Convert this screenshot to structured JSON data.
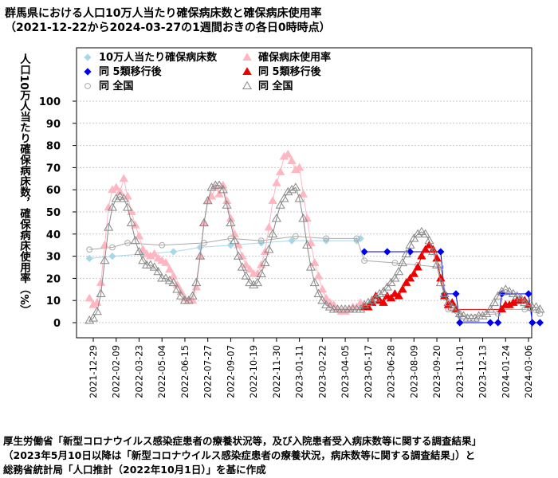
{
  "title_line1": "群馬県における人口10万人当たり確保病床数と確保病床使用率",
  "title_line2": "（2021-12-22から2024-03-27の1週間おきの各日0時時点）",
  "footer": [
    "厚生労働省「新型コロナウイルス感染症患者の療養状況等，及び入院患者受入病床数等に関する調査結果」",
    "（2023年5月10日以降は「新型コロナウイルス感染症患者の療養状況，病床数等に関する調査結果」）と",
    "総務省統計局「人口推計（2022年10月1日）」を基に作成"
  ],
  "chart_data": {
    "type": "scatter",
    "ylabel": "人口10万人当たり確保病床数，確保病床使用率（%）",
    "ylim": [
      0,
      100
    ],
    "yticks": [
      0,
      10,
      20,
      30,
      40,
      50,
      60,
      70,
      80,
      90,
      100
    ],
    "grid": true,
    "legend_position": "top-left",
    "x_tick_labels": [
      "2021-12-29",
      "2022-02-09",
      "2022-03-23",
      "2022-05-04",
      "2022-06-15",
      "2022-07-27",
      "2022-09-07",
      "2022-10-19",
      "2022-11-30",
      "2023-01-11",
      "2023-02-22",
      "2023-04-05",
      "2023-05-17",
      "2023-06-28",
      "2023-08-09",
      "2023-09-20",
      "2023-11-01",
      "2023-12-13",
      "2024-01-24",
      "2024-03-06"
    ],
    "series": [
      {
        "name": "10万人当たり確保病床数",
        "color": "#a8d8e8",
        "marker": "diamond",
        "points": [
          [
            "2021-12-22",
            29
          ],
          [
            "2022-02-02",
            30
          ],
          [
            "2022-03-30",
            31
          ],
          [
            "2022-05-25",
            32
          ],
          [
            "2022-07-13",
            34
          ],
          [
            "2022-09-07",
            35
          ],
          [
            "2022-11-02",
            36
          ],
          [
            "2022-12-28",
            37
          ],
          [
            "2023-03-01",
            37
          ],
          [
            "2023-04-26",
            37
          ],
          [
            "2023-05-03",
            38
          ]
        ]
      },
      {
        "name": "同 5類移行後",
        "color": "#0000ee",
        "marker": "diamond-filled",
        "points": [
          [
            "2023-05-10",
            32
          ],
          [
            "2023-06-21",
            32
          ],
          [
            "2023-08-02",
            32
          ],
          [
            "2023-09-27",
            32
          ],
          [
            "2023-10-04",
            13
          ],
          [
            "2023-10-25",
            13
          ],
          [
            "2023-11-01",
            0
          ],
          [
            "2023-12-27",
            0
          ],
          [
            "2024-01-10",
            0
          ],
          [
            "2024-01-17",
            13
          ],
          [
            "2024-03-06",
            13
          ],
          [
            "2024-03-13",
            0
          ],
          [
            "2024-03-27",
            0
          ]
        ]
      },
      {
        "name": "同 全国",
        "color": "#aaaaaa",
        "marker": "circle-open",
        "points": [
          [
            "2021-12-22",
            33
          ],
          [
            "2022-02-02",
            34
          ],
          [
            "2022-03-02",
            36
          ],
          [
            "2022-05-04",
            35
          ],
          [
            "2022-07-20",
            36
          ],
          [
            "2022-09-07",
            38
          ],
          [
            "2022-11-02",
            37
          ],
          [
            "2023-01-04",
            39
          ],
          [
            "2023-03-01",
            38
          ],
          [
            "2023-04-26",
            38
          ],
          [
            "2023-05-10",
            28
          ],
          [
            "2023-07-05",
            27
          ],
          [
            "2023-08-16",
            26
          ],
          [
            "2023-09-27",
            25
          ],
          [
            "2023-10-11",
            6
          ],
          [
            "2023-11-01",
            3
          ],
          [
            "2024-01-10",
            4
          ],
          [
            "2024-01-17",
            6
          ],
          [
            "2024-02-28",
            6
          ],
          [
            "2024-03-27",
            4
          ]
        ]
      },
      {
        "name": "確保病床使用率",
        "color": "#ffb6c1",
        "marker": "triangle",
        "points": [
          [
            "2021-12-22",
            11
          ],
          [
            "2021-12-29",
            8
          ],
          [
            "2022-01-05",
            9
          ],
          [
            "2022-01-12",
            18
          ],
          [
            "2022-01-19",
            35
          ],
          [
            "2022-01-26",
            52
          ],
          [
            "2022-02-02",
            60
          ],
          [
            "2022-02-09",
            61
          ],
          [
            "2022-02-16",
            59
          ],
          [
            "2022-02-23",
            65
          ],
          [
            "2022-03-02",
            57
          ],
          [
            "2022-03-09",
            50
          ],
          [
            "2022-03-16",
            44
          ],
          [
            "2022-03-23",
            39
          ],
          [
            "2022-03-30",
            33
          ],
          [
            "2022-04-06",
            31
          ],
          [
            "2022-04-13",
            30
          ],
          [
            "2022-04-20",
            31
          ],
          [
            "2022-04-27",
            29
          ],
          [
            "2022-05-04",
            28
          ],
          [
            "2022-05-11",
            27
          ],
          [
            "2022-05-18",
            24
          ],
          [
            "2022-05-25",
            21
          ],
          [
            "2022-06-01",
            17
          ],
          [
            "2022-06-08",
            14
          ],
          [
            "2022-06-15",
            11
          ],
          [
            "2022-06-22",
            10
          ],
          [
            "2022-06-29",
            10
          ],
          [
            "2022-07-06",
            16
          ],
          [
            "2022-07-13",
            30
          ],
          [
            "2022-07-20",
            45
          ],
          [
            "2022-07-27",
            55
          ],
          [
            "2022-08-03",
            57
          ],
          [
            "2022-08-10",
            61
          ],
          [
            "2022-08-17",
            58
          ],
          [
            "2022-08-24",
            62
          ],
          [
            "2022-08-31",
            55
          ],
          [
            "2022-09-07",
            47
          ],
          [
            "2022-09-14",
            40
          ],
          [
            "2022-09-21",
            35
          ],
          [
            "2022-09-28",
            30
          ],
          [
            "2022-10-05",
            26
          ],
          [
            "2022-10-12",
            24
          ],
          [
            "2022-10-19",
            22
          ],
          [
            "2022-10-26",
            22
          ],
          [
            "2022-11-02",
            26
          ],
          [
            "2022-11-09",
            32
          ],
          [
            "2022-11-16",
            43
          ],
          [
            "2022-11-23",
            55
          ],
          [
            "2022-11-30",
            63
          ],
          [
            "2022-12-07",
            68
          ],
          [
            "2022-12-14",
            75
          ],
          [
            "2022-12-21",
            76
          ],
          [
            "2022-12-28",
            73
          ],
          [
            "2023-01-04",
            69
          ],
          [
            "2023-01-11",
            70
          ],
          [
            "2023-01-18",
            58
          ],
          [
            "2023-01-25",
            47
          ],
          [
            "2023-02-01",
            36
          ],
          [
            "2023-02-08",
            27
          ],
          [
            "2023-02-15",
            21
          ],
          [
            "2023-02-22",
            15
          ],
          [
            "2023-03-01",
            11
          ],
          [
            "2023-03-08",
            9
          ],
          [
            "2023-03-15",
            8
          ],
          [
            "2023-03-22",
            6
          ],
          [
            "2023-03-29",
            5
          ],
          [
            "2023-04-05",
            5
          ],
          [
            "2023-04-12",
            6
          ],
          [
            "2023-04-19",
            7
          ],
          [
            "2023-04-26",
            7
          ],
          [
            "2023-05-03",
            9
          ]
        ]
      },
      {
        "name": "同 5類移行後",
        "color": "#ee0000",
        "marker": "triangle-filled",
        "points": [
          [
            "2023-05-10",
            7
          ],
          [
            "2023-05-17",
            7
          ],
          [
            "2023-05-24",
            9
          ],
          [
            "2023-05-31",
            12
          ],
          [
            "2023-06-07",
            10
          ],
          [
            "2023-06-14",
            9
          ],
          [
            "2023-06-21",
            12
          ],
          [
            "2023-06-28",
            11
          ],
          [
            "2023-07-05",
            13
          ],
          [
            "2023-07-12",
            12
          ],
          [
            "2023-07-19",
            15
          ],
          [
            "2023-07-26",
            18
          ],
          [
            "2023-08-02",
            20
          ],
          [
            "2023-08-09",
            22
          ],
          [
            "2023-08-16",
            25
          ],
          [
            "2023-08-23",
            30
          ],
          [
            "2023-08-30",
            33
          ],
          [
            "2023-09-06",
            35
          ],
          [
            "2023-09-13",
            33
          ],
          [
            "2023-09-20",
            29
          ],
          [
            "2023-09-27",
            20
          ],
          [
            "2023-10-04",
            12
          ],
          [
            "2023-10-11",
            8
          ],
          [
            "2023-10-18",
            9
          ],
          [
            "2023-10-25",
            6
          ],
          [
            "2024-01-17",
            6
          ],
          [
            "2024-01-24",
            8
          ],
          [
            "2024-01-31",
            8
          ],
          [
            "2024-02-07",
            9
          ],
          [
            "2024-02-14",
            10
          ],
          [
            "2024-02-21",
            10
          ],
          [
            "2024-02-28",
            10
          ],
          [
            "2024-03-06",
            8
          ]
        ]
      },
      {
        "name": "同 全国",
        "color": "#888888",
        "marker": "triangle-open",
        "points": [
          [
            "2021-12-22",
            1
          ],
          [
            "2021-12-29",
            2
          ],
          [
            "2022-01-05",
            5
          ],
          [
            "2022-01-12",
            13
          ],
          [
            "2022-01-19",
            28
          ],
          [
            "2022-01-26",
            43
          ],
          [
            "2022-02-02",
            52
          ],
          [
            "2022-02-09",
            56
          ],
          [
            "2022-02-16",
            57
          ],
          [
            "2022-02-23",
            56
          ],
          [
            "2022-03-02",
            52
          ],
          [
            "2022-03-09",
            45
          ],
          [
            "2022-03-16",
            37
          ],
          [
            "2022-03-23",
            32
          ],
          [
            "2022-03-30",
            28
          ],
          [
            "2022-04-06",
            26
          ],
          [
            "2022-04-13",
            26
          ],
          [
            "2022-04-20",
            25
          ],
          [
            "2022-04-27",
            23
          ],
          [
            "2022-05-04",
            20
          ],
          [
            "2022-05-11",
            20
          ],
          [
            "2022-05-18",
            19
          ],
          [
            "2022-05-25",
            18
          ],
          [
            "2022-06-01",
            15
          ],
          [
            "2022-06-08",
            12
          ],
          [
            "2022-06-15",
            10
          ],
          [
            "2022-06-22",
            10
          ],
          [
            "2022-06-29",
            12
          ],
          [
            "2022-07-06",
            18
          ],
          [
            "2022-07-13",
            30
          ],
          [
            "2022-07-20",
            45
          ],
          [
            "2022-07-27",
            55
          ],
          [
            "2022-08-03",
            61
          ],
          [
            "2022-08-10",
            62
          ],
          [
            "2022-08-17",
            62
          ],
          [
            "2022-08-24",
            60
          ],
          [
            "2022-08-31",
            53
          ],
          [
            "2022-09-07",
            45
          ],
          [
            "2022-09-14",
            37
          ],
          [
            "2022-09-21",
            30
          ],
          [
            "2022-09-28",
            25
          ],
          [
            "2022-10-05",
            21
          ],
          [
            "2022-10-12",
            18
          ],
          [
            "2022-10-19",
            17
          ],
          [
            "2022-10-26",
            18
          ],
          [
            "2022-11-02",
            22
          ],
          [
            "2022-11-09",
            27
          ],
          [
            "2022-11-16",
            33
          ],
          [
            "2022-11-23",
            40
          ],
          [
            "2022-11-30",
            47
          ],
          [
            "2022-12-07",
            53
          ],
          [
            "2022-12-14",
            56
          ],
          [
            "2022-12-21",
            59
          ],
          [
            "2022-12-28",
            60
          ],
          [
            "2023-01-04",
            61
          ],
          [
            "2023-01-11",
            56
          ],
          [
            "2023-01-18",
            47
          ],
          [
            "2023-01-25",
            35
          ],
          [
            "2023-02-01",
            25
          ],
          [
            "2023-02-08",
            18
          ],
          [
            "2023-02-15",
            13
          ],
          [
            "2023-02-22",
            10
          ],
          [
            "2023-03-01",
            8
          ],
          [
            "2023-03-08",
            7
          ],
          [
            "2023-03-15",
            6
          ],
          [
            "2023-03-22",
            6
          ],
          [
            "2023-03-29",
            6
          ],
          [
            "2023-04-05",
            6
          ],
          [
            "2023-04-12",
            6
          ],
          [
            "2023-04-19",
            6
          ],
          [
            "2023-04-26",
            6
          ],
          [
            "2023-05-03",
            6
          ],
          [
            "2023-05-10",
            8
          ],
          [
            "2023-05-17",
            9
          ],
          [
            "2023-05-24",
            10
          ],
          [
            "2023-05-31",
            11
          ],
          [
            "2023-06-07",
            13
          ],
          [
            "2023-06-14",
            14
          ],
          [
            "2023-06-21",
            16
          ],
          [
            "2023-06-28",
            18
          ],
          [
            "2023-07-05",
            20
          ],
          [
            "2023-07-12",
            23
          ],
          [
            "2023-07-19",
            27
          ],
          [
            "2023-07-26",
            31
          ],
          [
            "2023-08-02",
            35
          ],
          [
            "2023-08-09",
            38
          ],
          [
            "2023-08-16",
            40
          ],
          [
            "2023-08-23",
            41
          ],
          [
            "2023-08-30",
            40
          ],
          [
            "2023-09-06",
            37
          ],
          [
            "2023-09-13",
            32
          ],
          [
            "2023-09-20",
            26
          ],
          [
            "2023-09-27",
            18
          ],
          [
            "2023-10-04",
            13
          ],
          [
            "2023-10-11",
            9
          ],
          [
            "2023-10-18",
            7
          ],
          [
            "2023-10-25",
            6
          ],
          [
            "2023-11-01",
            4
          ],
          [
            "2023-11-08",
            3
          ],
          [
            "2023-11-15",
            2
          ],
          [
            "2023-11-22",
            2
          ],
          [
            "2023-11-29",
            2
          ],
          [
            "2023-12-06",
            3
          ],
          [
            "2023-12-13",
            3
          ],
          [
            "2023-12-20",
            4
          ],
          [
            "2023-12-27",
            6
          ],
          [
            "2024-01-03",
            9
          ],
          [
            "2024-01-10",
            12
          ],
          [
            "2024-01-17",
            14
          ],
          [
            "2024-01-24",
            15
          ],
          [
            "2024-01-31",
            14
          ],
          [
            "2024-02-07",
            13
          ],
          [
            "2024-02-14",
            12
          ],
          [
            "2024-02-21",
            11
          ],
          [
            "2024-02-28",
            9
          ],
          [
            "2024-03-06",
            8
          ],
          [
            "2024-03-13",
            7
          ],
          [
            "2024-03-20",
            7
          ],
          [
            "2024-03-27",
            6
          ]
        ]
      }
    ]
  }
}
